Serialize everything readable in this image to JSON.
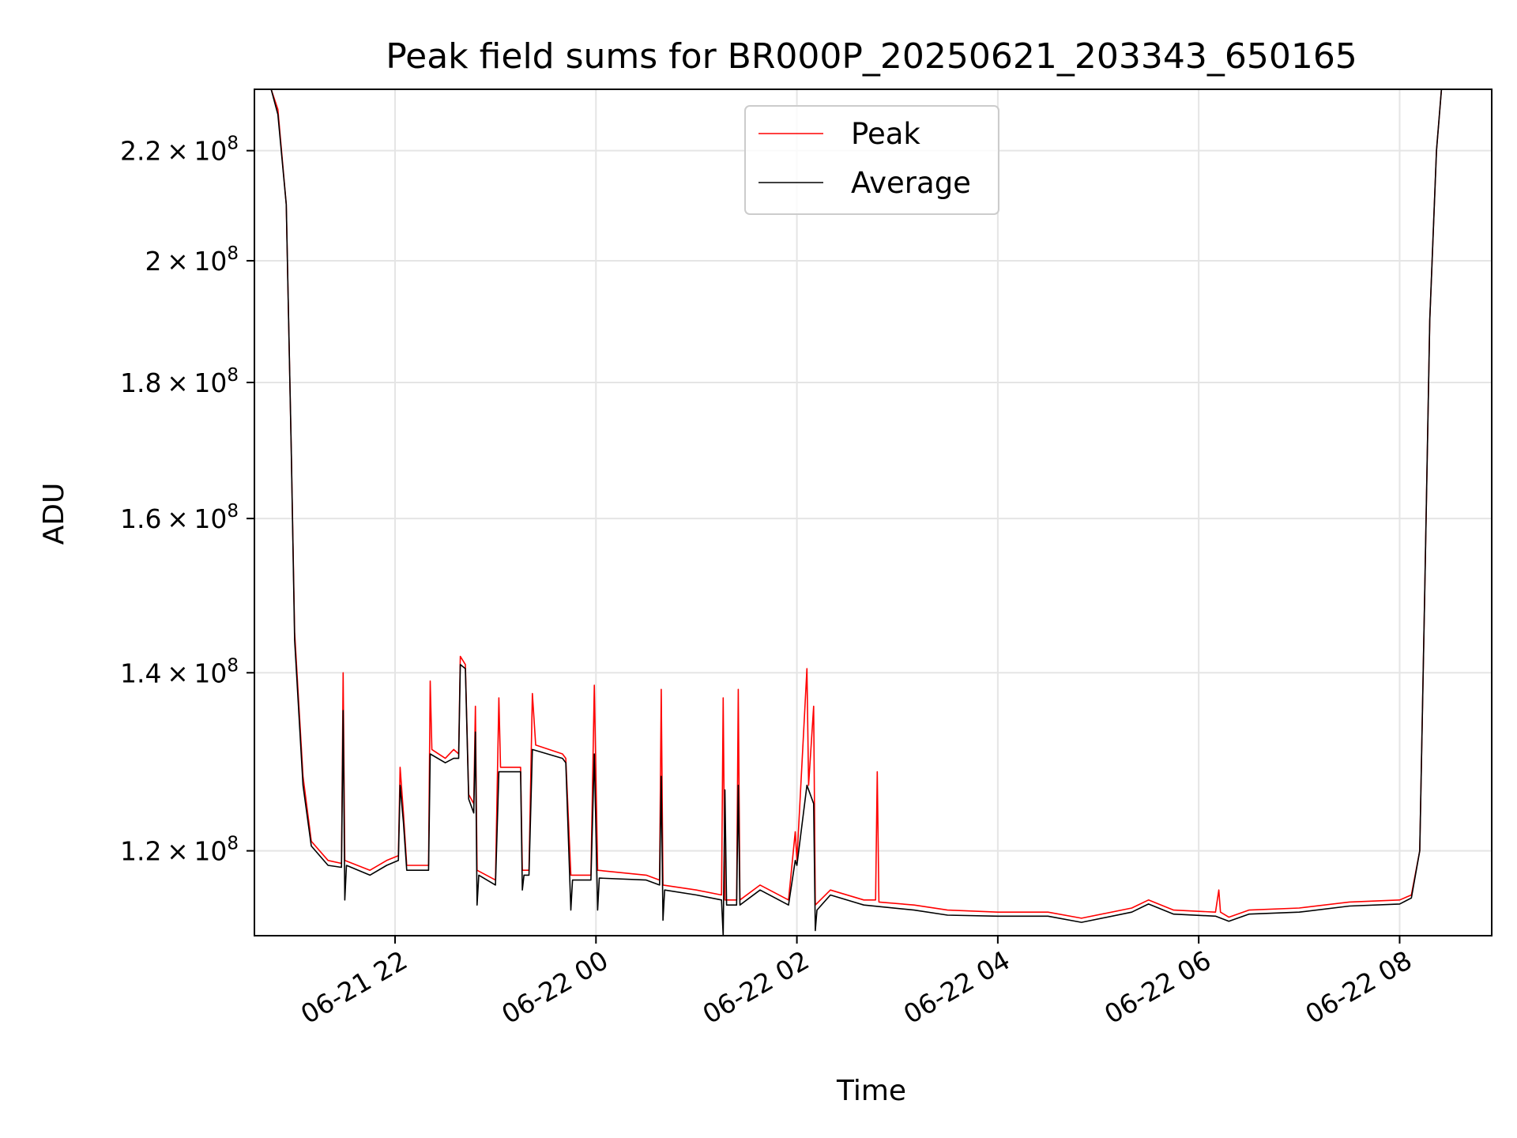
{
  "chart_data": {
    "type": "line",
    "title": "Peak field sums for BR000P_20250621_203343_650165",
    "xlabel": "Time",
    "ylabel": "ADU",
    "y_scale": "log",
    "ylim": [
      111500000.0,
      232000000.0
    ],
    "xlim": [
      "2025-06-21 20:36",
      "2025-06-22 08:55"
    ],
    "grid": true,
    "legend_placement": "upper center",
    "x_ticks": [
      {
        "value": "2025-06-21 22:00",
        "label": "06-21 22"
      },
      {
        "value": "2025-06-22 00:00",
        "label": "06-22 00"
      },
      {
        "value": "2025-06-22 02:00",
        "label": "06-22 02"
      },
      {
        "value": "2025-06-22 04:00",
        "label": "06-22 04"
      },
      {
        "value": "2025-06-22 06:00",
        "label": "06-22 06"
      },
      {
        "value": "2025-06-22 08:00",
        "label": "06-22 08"
      }
    ],
    "y_ticks": [
      {
        "value": 120000000.0,
        "mant": "1.2",
        "exp": "8"
      },
      {
        "value": 140000000.0,
        "mant": "1.4",
        "exp": "8"
      },
      {
        "value": 160000000.0,
        "mant": "1.6",
        "exp": "8"
      },
      {
        "value": 180000000.0,
        "mant": "1.8",
        "exp": "8"
      },
      {
        "value": 200000000.0,
        "mant": "2",
        "exp": "8"
      },
      {
        "value": 220000000.0,
        "mant": "2.2",
        "exp": "8"
      }
    ],
    "tick_times_symbol": "×",
    "tick_base": "10",
    "series": [
      {
        "name": "Peak",
        "color": "#ff0000",
        "points": [
          [
            "2025-06-21 20:36",
            232000000.0
          ],
          [
            "2025-06-21 20:46",
            232000000.0
          ],
          [
            "2025-06-21 20:50",
            228000000.0
          ],
          [
            "2025-06-21 20:55",
            210000000.0
          ],
          [
            "2025-06-21 20:58",
            170000000.0
          ],
          [
            "2025-06-21 21:00",
            145000000.0
          ],
          [
            "2025-06-21 21:05",
            128000000.0
          ],
          [
            "2025-06-21 21:10",
            121000000.0
          ],
          [
            "2025-06-21 21:20",
            119000000.0
          ],
          [
            "2025-06-21 21:28",
            118700000.0
          ],
          [
            "2025-06-21 21:29",
            140000000.0
          ],
          [
            "2025-06-21 21:30",
            119000000.0
          ],
          [
            "2025-06-21 21:45",
            118000000.0
          ],
          [
            "2025-06-21 21:55",
            119000000.0
          ],
          [
            "2025-06-21 22:02",
            119500000.0
          ],
          [
            "2025-06-21 22:03",
            129000000.0
          ],
          [
            "2025-06-21 22:05",
            124000000.0
          ],
          [
            "2025-06-21 22:07",
            118500000.0
          ],
          [
            "2025-06-21 22:20",
            118500000.0
          ],
          [
            "2025-06-21 22:21",
            139000000.0
          ],
          [
            "2025-06-21 22:22",
            131000000.0
          ],
          [
            "2025-06-21 22:30",
            130000000.0
          ],
          [
            "2025-06-21 22:35",
            131000000.0
          ],
          [
            "2025-06-21 22:38",
            130500000.0
          ],
          [
            "2025-06-21 22:39",
            142000000.0
          ],
          [
            "2025-06-21 22:42",
            141000000.0
          ],
          [
            "2025-06-21 22:44",
            126000000.0
          ],
          [
            "2025-06-21 22:47",
            125000000.0
          ],
          [
            "2025-06-21 22:48",
            136000000.0
          ],
          [
            "2025-06-21 22:49",
            118000000.0
          ],
          [
            "2025-06-21 23:00",
            117000000.0
          ],
          [
            "2025-06-21 23:02",
            137000000.0
          ],
          [
            "2025-06-21 23:03",
            129000000.0
          ],
          [
            "2025-06-21 23:15",
            129000000.0
          ],
          [
            "2025-06-21 23:16",
            118000000.0
          ],
          [
            "2025-06-21 23:20",
            118000000.0
          ],
          [
            "2025-06-21 23:22",
            137500000.0
          ],
          [
            "2025-06-21 23:24",
            131500000.0
          ],
          [
            "2025-06-21 23:40",
            130500000.0
          ],
          [
            "2025-06-21 23:42",
            130000000.0
          ],
          [
            "2025-06-21 23:45",
            117500000.0
          ],
          [
            "2025-06-21 23:57",
            117500000.0
          ],
          [
            "2025-06-21 23:59",
            138500000.0
          ],
          [
            "2025-06-22 00:01",
            118000000.0
          ],
          [
            "2025-06-22 00:30",
            117500000.0
          ],
          [
            "2025-06-22 00:38",
            117000000.0
          ],
          [
            "2025-06-22 00:39",
            138000000.0
          ],
          [
            "2025-06-22 00:40",
            116500000.0
          ],
          [
            "2025-06-22 01:00",
            116000000.0
          ],
          [
            "2025-06-22 01:15",
            115500000.0
          ],
          [
            "2025-06-22 01:16",
            137000000.0
          ],
          [
            "2025-06-22 01:17",
            115000000.0
          ],
          [
            "2025-06-22 01:24",
            115000000.0
          ],
          [
            "2025-06-22 01:25",
            138000000.0
          ],
          [
            "2025-06-22 01:26",
            115000000.0
          ],
          [
            "2025-06-22 01:38",
            116500000.0
          ],
          [
            "2025-06-22 01:55",
            115000000.0
          ],
          [
            "2025-06-22 01:59",
            122000000.0
          ],
          [
            "2025-06-22 02:00",
            119000000.0
          ],
          [
            "2025-06-22 02:06",
            140500000.0
          ],
          [
            "2025-06-22 02:07",
            127000000.0
          ],
          [
            "2025-06-22 02:10",
            136000000.0
          ],
          [
            "2025-06-22 02:11",
            114500000.0
          ],
          [
            "2025-06-22 02:20",
            116000000.0
          ],
          [
            "2025-06-22 02:40",
            115000000.0
          ],
          [
            "2025-06-22 02:47",
            115000000.0
          ],
          [
            "2025-06-22 02:48",
            128500000.0
          ],
          [
            "2025-06-22 02:49",
            114800000.0
          ],
          [
            "2025-06-22 03:10",
            114500000.0
          ],
          [
            "2025-06-22 03:30",
            114000000.0
          ],
          [
            "2025-06-22 04:00",
            113800000.0
          ],
          [
            "2025-06-22 04:30",
            113800000.0
          ],
          [
            "2025-06-22 04:50",
            113200000.0
          ],
          [
            "2025-06-22 05:20",
            114200000.0
          ],
          [
            "2025-06-22 05:30",
            115000000.0
          ],
          [
            "2025-06-22 05:45",
            114000000.0
          ],
          [
            "2025-06-22 06:10",
            113800000.0
          ],
          [
            "2025-06-22 06:12",
            116000000.0
          ],
          [
            "2025-06-22 06:13",
            113800000.0
          ],
          [
            "2025-06-22 06:18",
            113300000.0
          ],
          [
            "2025-06-22 06:30",
            114000000.0
          ],
          [
            "2025-06-22 07:00",
            114200000.0
          ],
          [
            "2025-06-22 07:30",
            114800000.0
          ],
          [
            "2025-06-22 08:00",
            115000000.0
          ],
          [
            "2025-06-22 08:07",
            115500000.0
          ],
          [
            "2025-06-22 08:12",
            120000000.0
          ],
          [
            "2025-06-22 08:15",
            150000000.0
          ],
          [
            "2025-06-22 08:18",
            190000000.0
          ],
          [
            "2025-06-22 08:22",
            220000000.0
          ],
          [
            "2025-06-22 08:25",
            232000000.0
          ],
          [
            "2025-06-22 08:55",
            232000000.0
          ]
        ]
      },
      {
        "name": "Average",
        "color": "#000000",
        "points": [
          [
            "2025-06-21 20:36",
            232000000.0
          ],
          [
            "2025-06-21 20:46",
            232000000.0
          ],
          [
            "2025-06-21 20:50",
            227000000.0
          ],
          [
            "2025-06-21 20:55",
            210000000.0
          ],
          [
            "2025-06-21 20:58",
            170000000.0
          ],
          [
            "2025-06-21 21:00",
            144000000.0
          ],
          [
            "2025-06-21 21:05",
            127000000.0
          ],
          [
            "2025-06-21 21:10",
            120500000.0
          ],
          [
            "2025-06-21 21:20",
            118500000.0
          ],
          [
            "2025-06-21 21:28",
            118300000.0
          ],
          [
            "2025-06-21 21:29",
            135500000.0
          ],
          [
            "2025-06-21 21:30",
            115000000.0
          ],
          [
            "2025-06-21 21:31",
            118500000.0
          ],
          [
            "2025-06-21 21:45",
            117500000.0
          ],
          [
            "2025-06-21 21:55",
            118500000.0
          ],
          [
            "2025-06-21 22:02",
            119000000.0
          ],
          [
            "2025-06-21 22:03",
            127000000.0
          ],
          [
            "2025-06-21 22:05",
            123000000.0
          ],
          [
            "2025-06-21 22:07",
            118000000.0
          ],
          [
            "2025-06-21 22:20",
            118000000.0
          ],
          [
            "2025-06-21 22:21",
            130500000.0
          ],
          [
            "2025-06-21 22:30",
            129500000.0
          ],
          [
            "2025-06-21 22:35",
            130000000.0
          ],
          [
            "2025-06-21 22:38",
            130000000.0
          ],
          [
            "2025-06-21 22:39",
            141000000.0
          ],
          [
            "2025-06-21 22:42",
            140500000.0
          ],
          [
            "2025-06-21 22:44",
            125500000.0
          ],
          [
            "2025-06-21 22:47",
            124000000.0
          ],
          [
            "2025-06-21 22:48",
            133000000.0
          ],
          [
            "2025-06-21 22:49",
            114500000.0
          ],
          [
            "2025-06-21 22:50",
            117500000.0
          ],
          [
            "2025-06-21 23:00",
            116500000.0
          ],
          [
            "2025-06-21 23:02",
            128500000.0
          ],
          [
            "2025-06-21 23:15",
            128500000.0
          ],
          [
            "2025-06-21 23:16",
            116000000.0
          ],
          [
            "2025-06-21 23:17",
            117500000.0
          ],
          [
            "2025-06-21 23:20",
            117500000.0
          ],
          [
            "2025-06-21 23:22",
            131000000.0
          ],
          [
            "2025-06-21 23:40",
            130000000.0
          ],
          [
            "2025-06-21 23:42",
            129500000.0
          ],
          [
            "2025-06-21 23:45",
            114000000.0
          ],
          [
            "2025-06-21 23:46",
            117000000.0
          ],
          [
            "2025-06-21 23:57",
            117000000.0
          ],
          [
            "2025-06-21 23:59",
            130500000.0
          ],
          [
            "2025-06-22 00:01",
            114000000.0
          ],
          [
            "2025-06-22 00:02",
            117200000.0
          ],
          [
            "2025-06-22 00:30",
            117000000.0
          ],
          [
            "2025-06-22 00:38",
            116500000.0
          ],
          [
            "2025-06-22 00:39",
            128000000.0
          ],
          [
            "2025-06-22 00:40",
            113000000.0
          ],
          [
            "2025-06-22 00:41",
            116000000.0
          ],
          [
            "2025-06-22 01:00",
            115500000.0
          ],
          [
            "2025-06-22 01:15",
            115000000.0
          ],
          [
            "2025-06-22 01:16",
            111500000.0
          ],
          [
            "2025-06-22 01:17",
            126500000.0
          ],
          [
            "2025-06-22 01:18",
            114500000.0
          ],
          [
            "2025-06-22 01:24",
            114500000.0
          ],
          [
            "2025-06-22 01:25",
            127000000.0
          ],
          [
            "2025-06-22 01:26",
            114500000.0
          ],
          [
            "2025-06-22 01:38",
            116000000.0
          ],
          [
            "2025-06-22 01:55",
            114500000.0
          ],
          [
            "2025-06-22 01:59",
            119000000.0
          ],
          [
            "2025-06-22 02:00",
            118500000.0
          ],
          [
            "2025-06-22 02:06",
            127000000.0
          ],
          [
            "2025-06-22 02:10",
            125000000.0
          ],
          [
            "2025-06-22 02:11",
            112000000.0
          ],
          [
            "2025-06-22 02:12",
            114000000.0
          ],
          [
            "2025-06-22 02:20",
            115500000.0
          ],
          [
            "2025-06-22 02:40",
            114500000.0
          ],
          [
            "2025-06-22 03:10",
            114000000.0
          ],
          [
            "2025-06-22 03:30",
            113500000.0
          ],
          [
            "2025-06-22 04:00",
            113400000.0
          ],
          [
            "2025-06-22 04:30",
            113400000.0
          ],
          [
            "2025-06-22 04:50",
            112800000.0
          ],
          [
            "2025-06-22 05:20",
            113800000.0
          ],
          [
            "2025-06-22 05:30",
            114600000.0
          ],
          [
            "2025-06-22 05:45",
            113600000.0
          ],
          [
            "2025-06-22 06:10",
            113400000.0
          ],
          [
            "2025-06-22 06:18",
            112900000.0
          ],
          [
            "2025-06-22 06:30",
            113600000.0
          ],
          [
            "2025-06-22 07:00",
            113800000.0
          ],
          [
            "2025-06-22 07:30",
            114400000.0
          ],
          [
            "2025-06-22 08:00",
            114600000.0
          ],
          [
            "2025-06-22 08:07",
            115200000.0
          ],
          [
            "2025-06-22 08:12",
            120000000.0
          ],
          [
            "2025-06-22 08:15",
            150000000.0
          ],
          [
            "2025-06-22 08:18",
            190000000.0
          ],
          [
            "2025-06-22 08:22",
            220000000.0
          ],
          [
            "2025-06-22 08:25",
            232000000.0
          ],
          [
            "2025-06-22 08:55",
            232000000.0
          ]
        ]
      }
    ]
  }
}
